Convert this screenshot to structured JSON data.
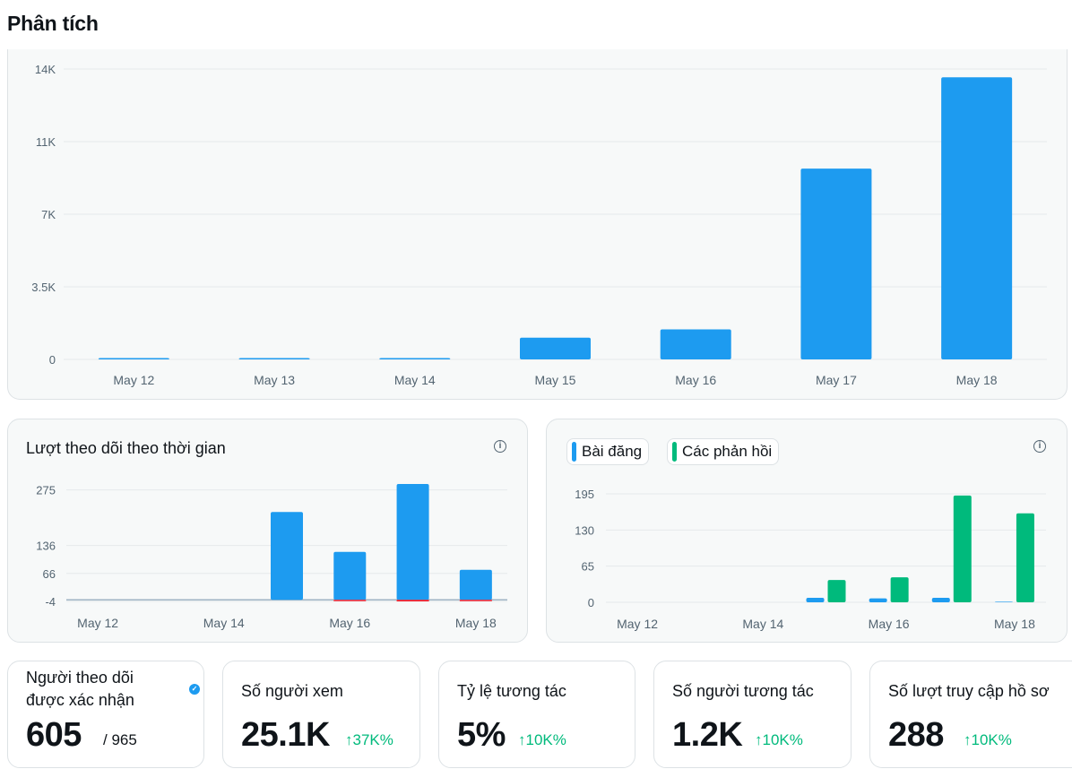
{
  "page_title": "Phân tích",
  "colors": {
    "blue": "#1d9bf0",
    "green": "#00ba7c",
    "red": "#f4212e",
    "text": "#0f1419",
    "muted": "#536471"
  },
  "impressions_chart": {
    "yticks": [
      "14K",
      "11K",
      "7K",
      "3.5K",
      "0"
    ],
    "categories": [
      "May 12",
      "May 13",
      "May 14",
      "May 15",
      "May 16",
      "May 17",
      "May 18"
    ]
  },
  "followers_card": {
    "title": "Lượt theo dõi theo thời gian",
    "yticks": [
      "275",
      "136",
      "66",
      "-4"
    ],
    "xticks": [
      "May 12",
      "May 14",
      "May 16",
      "May 18"
    ]
  },
  "posts_card": {
    "legend": [
      "Bài đăng",
      "Các phản hồi"
    ],
    "yticks": [
      "195",
      "130",
      "65",
      "0"
    ],
    "xticks": [
      "May 12",
      "May 14",
      "May 16",
      "May 18"
    ]
  },
  "stats": [
    {
      "label": "Người theo dõi",
      "label2": "được xác nhận",
      "value": "605",
      "total": "/ 965"
    },
    {
      "label": "Số người xem",
      "value": "25.1K",
      "change": "37K%"
    },
    {
      "label": "Tỷ lệ tương tác",
      "value": "5%",
      "change": "10K%"
    },
    {
      "label": "Số người tương tác",
      "value": "1.2K",
      "change": "10K%"
    },
    {
      "label": "Số lượt truy cập hồ sơ",
      "value": "288",
      "change": "10K%"
    }
  ],
  "chart_data": [
    {
      "type": "bar",
      "categories": [
        "May 12",
        "May 13",
        "May 14",
        "May 15",
        "May 16",
        "May 17",
        "May 18"
      ],
      "values": [
        20,
        20,
        20,
        1050,
        1450,
        9200,
        13600
      ],
      "ylim": [
        0,
        14000
      ],
      "yticks": [
        0,
        3500,
        7000,
        10500,
        14000
      ],
      "grid": true
    },
    {
      "type": "bar",
      "title": "Lượt theo dõi theo thời gian",
      "categories": [
        "May 12",
        "May 13",
        "May 14",
        "May 15",
        "May 16",
        "May 17",
        "May 18"
      ],
      "series": [
        {
          "values": [
            0,
            0,
            0,
            220,
            120,
            290,
            75
          ]
        },
        {
          "values": [
            0,
            0,
            0,
            0,
            -1,
            -4,
            -3
          ]
        }
      ],
      "ylim": [
        -4,
        290
      ],
      "yticks": [
        -4,
        66,
        136,
        275
      ],
      "grid": true
    },
    {
      "type": "bar",
      "categories": [
        "May 12",
        "May 13",
        "May 14",
        "May 15",
        "May 16",
        "May 17",
        "May 18"
      ],
      "series": [
        {
          "name": "Bài đăng",
          "values": [
            0,
            0,
            0,
            8,
            7,
            8,
            1
          ]
        },
        {
          "name": "Các phản hồi",
          "values": [
            0,
            0,
            0,
            40,
            45,
            192,
            160
          ]
        }
      ],
      "ylim": [
        0,
        195
      ],
      "yticks": [
        0,
        65,
        130,
        195
      ],
      "grid": true
    }
  ]
}
